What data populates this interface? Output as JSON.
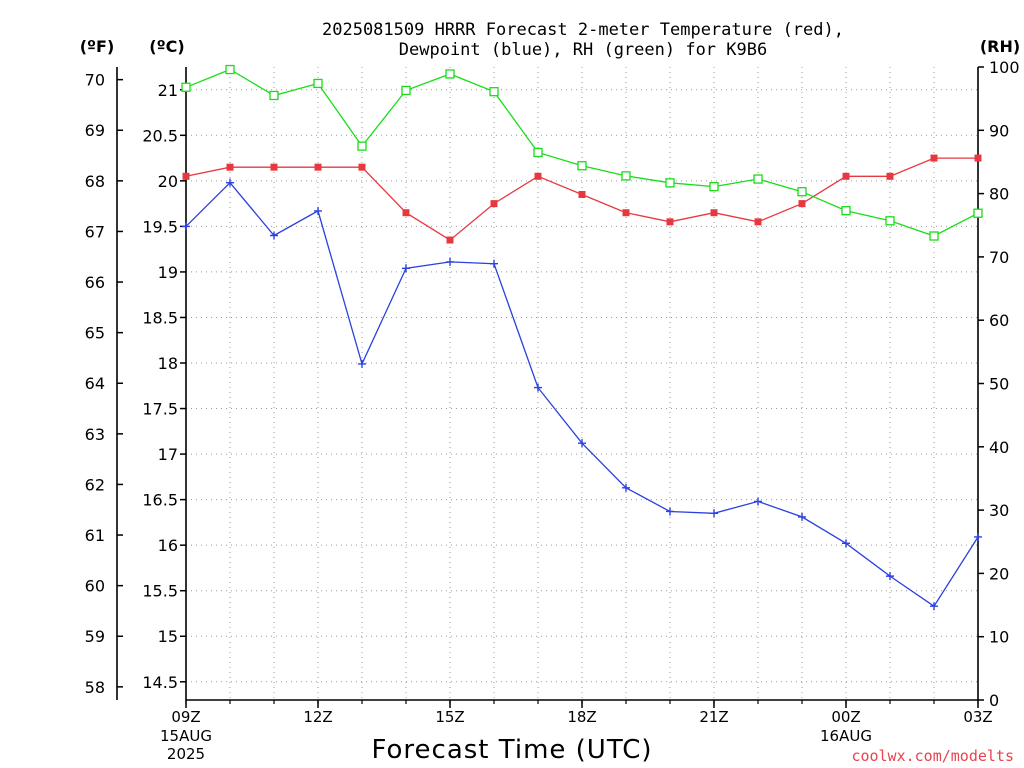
{
  "title_line1": "2025081509 HRRR Forecast 2-meter Temperature (red),",
  "title_line2": "Dewpoint (blue), RH (green) for K9B6",
  "unit_f": "(ºF)",
  "unit_c": "(ºC)",
  "unit_rh": "(RH)",
  "xlabel": "Forecast Time (UTC)",
  "credit": "coolwx.com/modelts",
  "colors": {
    "temperature": "#e8383f",
    "dewpoint": "#2b40e0",
    "rh": "#18dd18"
  },
  "chart_data": {
    "type": "line",
    "x": [
      "09Z",
      "10Z",
      "11Z",
      "12Z",
      "13Z",
      "14Z",
      "15Z",
      "16Z",
      "17Z",
      "18Z",
      "19Z",
      "20Z",
      "21Z",
      "22Z",
      "23Z",
      "00Z",
      "01Z",
      "02Z",
      "03Z"
    ],
    "x_tick_labels": [
      {
        "label": "09Z",
        "sub1": "15AUG",
        "sub2": "2025"
      },
      {
        "label": "12Z",
        "sub1": "",
        "sub2": ""
      },
      {
        "label": "15Z",
        "sub1": "",
        "sub2": ""
      },
      {
        "label": "18Z",
        "sub1": "",
        "sub2": ""
      },
      {
        "label": "21Z",
        "sub1": "",
        "sub2": ""
      },
      {
        "label": "00Z",
        "sub1": "16AUG",
        "sub2": ""
      },
      {
        "label": "03Z",
        "sub1": "",
        "sub2": ""
      }
    ],
    "x_tick_indices": [
      0,
      3,
      6,
      9,
      12,
      15,
      18
    ],
    "celsius_axis": {
      "min": 14.3,
      "max": 21.25,
      "ticks": [
        "14.5",
        "15",
        "15.5",
        "16",
        "16.5",
        "17",
        "17.5",
        "18",
        "18.5",
        "19",
        "19.5",
        "20",
        "20.5",
        "21"
      ]
    },
    "fahrenheit_axis": {
      "ticks": [
        "58",
        "59",
        "60",
        "61",
        "62",
        "63",
        "64",
        "65",
        "66",
        "67",
        "68",
        "69",
        "70"
      ]
    },
    "rh_axis": {
      "min": 0,
      "max": 100,
      "ticks": [
        "0",
        "10",
        "20",
        "30",
        "40",
        "50",
        "60",
        "70",
        "80",
        "90",
        "100"
      ]
    },
    "grid": true,
    "series": [
      {
        "name": "Temperature",
        "axis": "celsius",
        "marker": "filled-square",
        "values": [
          20.05,
          20.15,
          20.15,
          20.15,
          20.15,
          19.65,
          19.35,
          19.75,
          20.05,
          19.85,
          19.65,
          19.55,
          19.65,
          19.55,
          19.75,
          20.05,
          20.05,
          20.25,
          20.25
        ]
      },
      {
        "name": "Dewpoint",
        "axis": "celsius",
        "marker": "plus",
        "values": [
          19.5,
          19.98,
          19.4,
          19.67,
          17.99,
          19.04,
          19.11,
          19.09,
          17.73,
          17.12,
          16.63,
          16.37,
          16.35,
          16.48,
          16.31,
          16.02,
          15.66,
          15.33,
          16.09
        ]
      },
      {
        "name": "RH",
        "axis": "rh",
        "marker": "open-square",
        "values": [
          96.8,
          99.6,
          95.5,
          97.4,
          87.5,
          96.3,
          98.9,
          96.1,
          86.5,
          84.4,
          82.8,
          81.7,
          81.1,
          82.3,
          80.3,
          77.3,
          75.7,
          73.3,
          76.9
        ]
      }
    ]
  }
}
